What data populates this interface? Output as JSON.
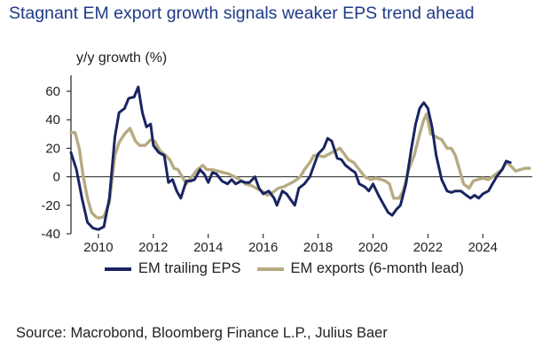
{
  "title": "Stagnant EM export growth signals weaker EPS trend ahead",
  "source": "Source: Macrobond, Bloomberg Finance L.P., Julius Baer",
  "colors": {
    "eps": "#1a2461",
    "exports": "#b6ab82",
    "axis": "#222222",
    "title": "#1f3a87"
  },
  "chart_data": {
    "type": "line",
    "title": "Stagnant EM export growth signals weaker EPS trend ahead",
    "ylabel": "y/y growth (%)",
    "xlabel": "",
    "xlim": [
      2009.0,
      2025.8
    ],
    "ylim": [
      -40,
      65
    ],
    "xticks": [
      2010,
      2012,
      2014,
      2016,
      2018,
      2020,
      2022,
      2024
    ],
    "yticks": [
      -40,
      -20,
      0,
      20,
      40,
      60
    ],
    "grid": false,
    "legend_position": "bottom",
    "series": [
      {
        "name": "EM trailing EPS",
        "color": "#1a2461",
        "points": [
          [
            2009.0,
            17
          ],
          [
            2009.2,
            5
          ],
          [
            2009.4,
            -15
          ],
          [
            2009.6,
            -32
          ],
          [
            2009.8,
            -36
          ],
          [
            2010.0,
            -37
          ],
          [
            2010.2,
            -35
          ],
          [
            2010.4,
            -15
          ],
          [
            2010.6,
            28
          ],
          [
            2010.75,
            45
          ],
          [
            2010.95,
            48
          ],
          [
            2011.1,
            55
          ],
          [
            2011.3,
            56
          ],
          [
            2011.45,
            63
          ],
          [
            2011.6,
            45
          ],
          [
            2011.75,
            35
          ],
          [
            2011.9,
            37
          ],
          [
            2012.0,
            22
          ],
          [
            2012.2,
            17
          ],
          [
            2012.4,
            15
          ],
          [
            2012.55,
            -4
          ],
          [
            2012.7,
            -2
          ],
          [
            2012.85,
            -10
          ],
          [
            2013.0,
            -15
          ],
          [
            2013.2,
            -3
          ],
          [
            2013.35,
            -3
          ],
          [
            2013.5,
            -2
          ],
          [
            2013.7,
            5
          ],
          [
            2013.85,
            2
          ],
          [
            2014.0,
            -4
          ],
          [
            2014.15,
            3
          ],
          [
            2014.3,
            2
          ],
          [
            2014.5,
            -3
          ],
          [
            2014.7,
            -5
          ],
          [
            2014.85,
            -2
          ],
          [
            2015.0,
            -5
          ],
          [
            2015.2,
            -3
          ],
          [
            2015.35,
            -4
          ],
          [
            2015.5,
            -4
          ],
          [
            2015.7,
            0
          ],
          [
            2015.85,
            -8
          ],
          [
            2016.0,
            -12
          ],
          [
            2016.2,
            -10
          ],
          [
            2016.4,
            -15
          ],
          [
            2016.5,
            -20
          ],
          [
            2016.7,
            -10
          ],
          [
            2016.85,
            -12
          ],
          [
            2017.0,
            -16
          ],
          [
            2017.15,
            -20
          ],
          [
            2017.3,
            -8
          ],
          [
            2017.5,
            -5
          ],
          [
            2017.7,
            0
          ],
          [
            2017.85,
            8
          ],
          [
            2018.0,
            16
          ],
          [
            2018.2,
            20
          ],
          [
            2018.35,
            27
          ],
          [
            2018.5,
            25
          ],
          [
            2018.7,
            13
          ],
          [
            2018.85,
            12
          ],
          [
            2019.0,
            8
          ],
          [
            2019.2,
            5
          ],
          [
            2019.35,
            3
          ],
          [
            2019.5,
            -5
          ],
          [
            2019.7,
            -7
          ],
          [
            2019.85,
            -10
          ],
          [
            2020.0,
            -5
          ],
          [
            2020.2,
            -13
          ],
          [
            2020.4,
            -20
          ],
          [
            2020.55,
            -25
          ],
          [
            2020.7,
            -27
          ],
          [
            2020.85,
            -23
          ],
          [
            2021.0,
            -20
          ],
          [
            2021.2,
            -5
          ],
          [
            2021.4,
            20
          ],
          [
            2021.55,
            37
          ],
          [
            2021.7,
            48
          ],
          [
            2021.85,
            52
          ],
          [
            2022.0,
            48
          ],
          [
            2022.15,
            35
          ],
          [
            2022.3,
            15
          ],
          [
            2022.5,
            -2
          ],
          [
            2022.7,
            -10
          ],
          [
            2022.85,
            -11
          ],
          [
            2023.0,
            -10
          ],
          [
            2023.2,
            -10
          ],
          [
            2023.4,
            -13
          ],
          [
            2023.55,
            -15
          ],
          [
            2023.7,
            -13
          ],
          [
            2023.85,
            -15
          ],
          [
            2024.0,
            -12
          ],
          [
            2024.2,
            -10
          ],
          [
            2024.35,
            -5
          ],
          [
            2024.5,
            0
          ],
          [
            2024.7,
            5
          ],
          [
            2024.85,
            11
          ],
          [
            2025.0,
            10
          ]
        ]
      },
      {
        "name": "EM exports (6-month lead)",
        "color": "#b6ab82",
        "points": [
          [
            2009.0,
            31
          ],
          [
            2009.15,
            31
          ],
          [
            2009.3,
            20
          ],
          [
            2009.45,
            0
          ],
          [
            2009.6,
            -15
          ],
          [
            2009.75,
            -25
          ],
          [
            2009.9,
            -28
          ],
          [
            2010.0,
            -29
          ],
          [
            2010.2,
            -28
          ],
          [
            2010.4,
            -18
          ],
          [
            2010.6,
            15
          ],
          [
            2010.75,
            24
          ],
          [
            2010.95,
            30
          ],
          [
            2011.15,
            34
          ],
          [
            2011.35,
            25
          ],
          [
            2011.5,
            22
          ],
          [
            2011.7,
            22
          ],
          [
            2011.9,
            26
          ],
          [
            2012.05,
            25
          ],
          [
            2012.25,
            18
          ],
          [
            2012.45,
            15
          ],
          [
            2012.6,
            12
          ],
          [
            2012.75,
            6
          ],
          [
            2012.9,
            5
          ],
          [
            2013.05,
            0
          ],
          [
            2013.2,
            -5
          ],
          [
            2013.4,
            0
          ],
          [
            2013.6,
            5
          ],
          [
            2013.8,
            8
          ],
          [
            2013.95,
            5
          ],
          [
            2014.15,
            5
          ],
          [
            2014.35,
            4
          ],
          [
            2014.55,
            3
          ],
          [
            2014.75,
            2
          ],
          [
            2014.95,
            0
          ],
          [
            2015.15,
            -2
          ],
          [
            2015.35,
            -5
          ],
          [
            2015.55,
            -6
          ],
          [
            2015.75,
            -8
          ],
          [
            2015.95,
            -10
          ],
          [
            2016.15,
            -13
          ],
          [
            2016.35,
            -11
          ],
          [
            2016.55,
            -8
          ],
          [
            2016.75,
            -7
          ],
          [
            2016.95,
            -5
          ],
          [
            2017.15,
            -3
          ],
          [
            2017.35,
            0
          ],
          [
            2017.5,
            5
          ],
          [
            2017.7,
            10
          ],
          [
            2017.85,
            15
          ],
          [
            2018.0,
            15
          ],
          [
            2018.2,
            14
          ],
          [
            2018.4,
            16
          ],
          [
            2018.6,
            18
          ],
          [
            2018.8,
            20
          ],
          [
            2018.95,
            16
          ],
          [
            2019.1,
            12
          ],
          [
            2019.3,
            10
          ],
          [
            2019.5,
            5
          ],
          [
            2019.7,
            0
          ],
          [
            2019.9,
            -2
          ],
          [
            2020.1,
            -1
          ],
          [
            2020.3,
            -2
          ],
          [
            2020.45,
            -3
          ],
          [
            2020.6,
            -5
          ],
          [
            2020.75,
            -15
          ],
          [
            2020.95,
            -15
          ],
          [
            2021.1,
            -10
          ],
          [
            2021.3,
            5
          ],
          [
            2021.5,
            15
          ],
          [
            2021.7,
            30
          ],
          [
            2021.85,
            40
          ],
          [
            2021.95,
            44
          ],
          [
            2022.1,
            30
          ],
          [
            2022.3,
            28
          ],
          [
            2022.5,
            26
          ],
          [
            2022.7,
            20
          ],
          [
            2022.85,
            20
          ],
          [
            2023.0,
            15
          ],
          [
            2023.15,
            5
          ],
          [
            2023.3,
            -5
          ],
          [
            2023.5,
            -8
          ],
          [
            2023.65,
            -3
          ],
          [
            2023.8,
            -2
          ],
          [
            2024.0,
            -1
          ],
          [
            2024.2,
            -2
          ],
          [
            2024.35,
            0
          ],
          [
            2024.55,
            3
          ],
          [
            2024.7,
            5
          ],
          [
            2024.85,
            10
          ],
          [
            2025.0,
            8
          ],
          [
            2025.2,
            4
          ],
          [
            2025.35,
            5
          ],
          [
            2025.55,
            6
          ],
          [
            2025.7,
            6
          ]
        ]
      }
    ]
  }
}
